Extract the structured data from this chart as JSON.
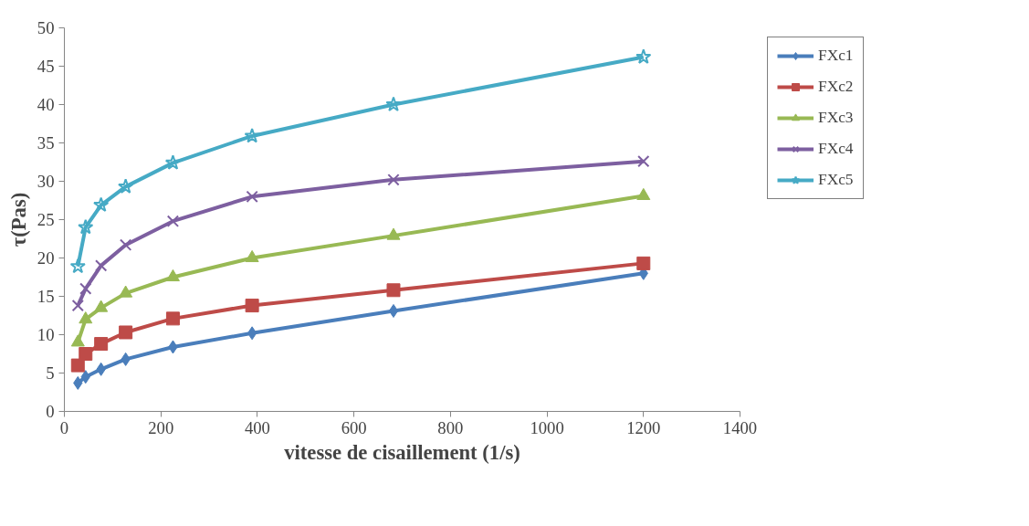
{
  "chart_data": {
    "type": "line",
    "xlabel": "vitesse de cisaillement (1/s)",
    "ylabel": "τ(Pas)",
    "x": [
      28,
      44,
      76,
      127,
      225,
      389,
      682,
      1200
    ],
    "series": [
      {
        "name": "FXc1",
        "color": "#4a7ebb",
        "marker": "diamond",
        "values": [
          3.7,
          4.5,
          5.5,
          6.8,
          8.4,
          10.2,
          13.1,
          18.0
        ]
      },
      {
        "name": "FXc2",
        "color": "#be4b48",
        "marker": "square",
        "values": [
          6.0,
          7.5,
          8.8,
          10.3,
          12.1,
          13.8,
          15.8,
          19.3
        ]
      },
      {
        "name": "FXc3",
        "color": "#98b954",
        "marker": "triangle",
        "values": [
          9.0,
          12.0,
          13.5,
          15.4,
          17.5,
          20.0,
          22.9,
          28.1
        ]
      },
      {
        "name": "FXc4",
        "color": "#7d5fa0",
        "marker": "cross",
        "values": [
          13.8,
          16.0,
          19.0,
          21.7,
          24.8,
          28.0,
          30.2,
          32.6
        ]
      },
      {
        "name": "FXc5",
        "color": "#46aac5",
        "marker": "star",
        "values": [
          18.9,
          24.0,
          26.9,
          29.3,
          32.4,
          35.9,
          40.0,
          46.2
        ]
      }
    ],
    "xlim": [
      0,
      1400
    ],
    "xticks": [
      0,
      200,
      400,
      600,
      800,
      1000,
      1200,
      1400
    ],
    "ylim": [
      0,
      50
    ],
    "yticks": [
      0,
      5,
      10,
      15,
      20,
      25,
      30,
      35,
      40,
      45,
      50
    ],
    "grid": false,
    "legend": "right",
    "line_style": "solid"
  }
}
